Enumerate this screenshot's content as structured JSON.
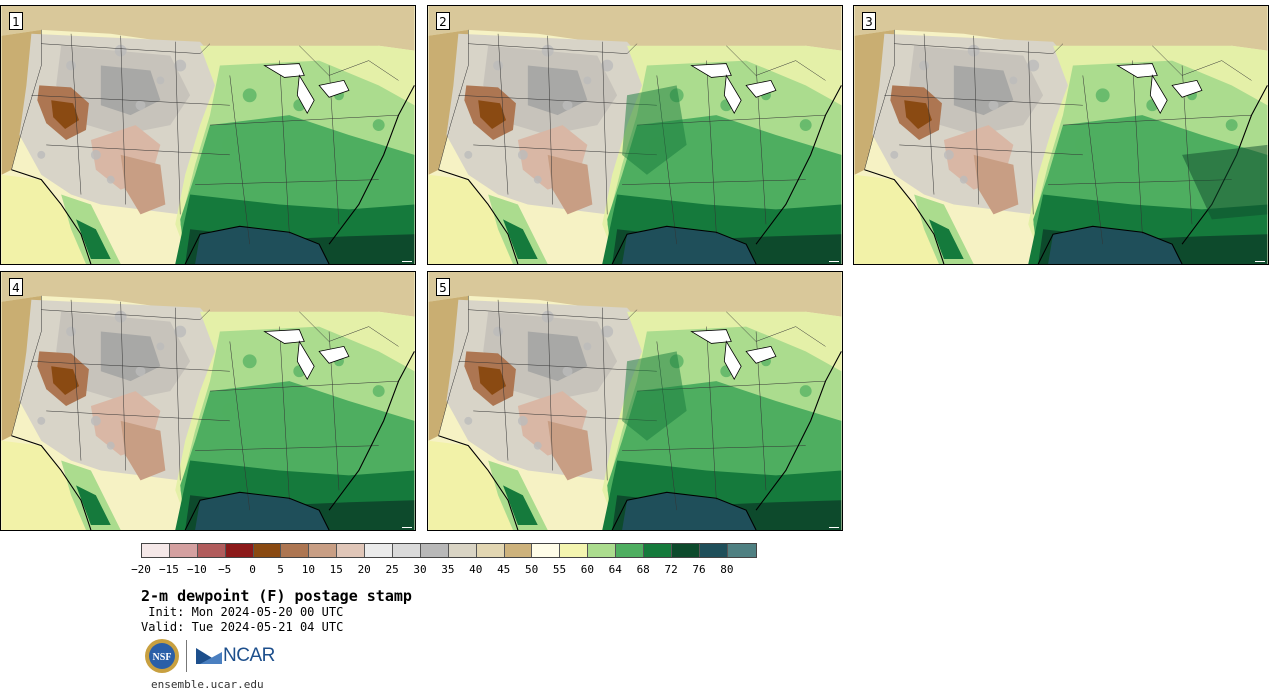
{
  "stamps": [
    {
      "number": "1"
    },
    {
      "number": "2"
    },
    {
      "number": "3"
    },
    {
      "number": "4"
    },
    {
      "number": "5"
    }
  ],
  "colorbar": {
    "colors": [
      "#f5e8e8",
      "#d4a0a0",
      "#b15c5c",
      "#8c1a1a",
      "#8a4a12",
      "#ad7652",
      "#c89e84",
      "#e0c6b8",
      "#ebebeb",
      "#dadada",
      "#b8b8b8",
      "#d9d4c4",
      "#e2d6b2",
      "#cdb27c",
      "#fffde8",
      "#f4f5b0",
      "#abdc8e",
      "#4eae60",
      "#157a3c",
      "#0d4a2c",
      "#1f4f5a",
      "#4f8082"
    ],
    "tick_labels": [
      "−20",
      "−15",
      "−10",
      "−5",
      "0",
      "5",
      "10",
      "15",
      "20",
      "25",
      "30",
      "35",
      "40",
      "45",
      "50",
      "55",
      "60",
      "64",
      "68",
      "72",
      "76",
      "80"
    ]
  },
  "title": "2-m dewpoint (F) postage stamp",
  "init_line": " Init: Mon 2024-05-20 00 UTC",
  "valid_line": "Valid: Tue 2024-05-21 04 UTC",
  "logo": {
    "nsf_text": "NSF",
    "ncar_text": "NCAR"
  },
  "site_url": "ensemble.ucar.edu"
}
